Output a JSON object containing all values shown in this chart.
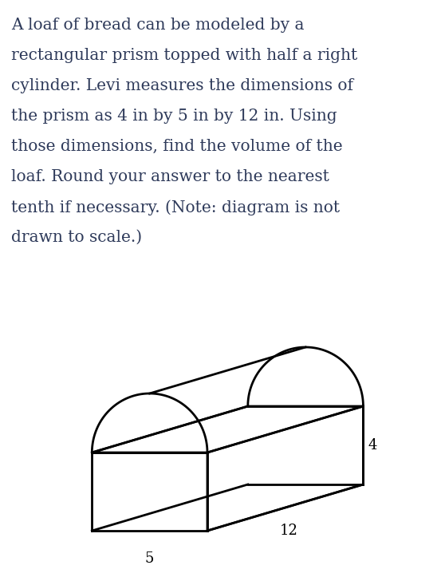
{
  "text_color": "#2e3a5a",
  "background_color": "#ffffff",
  "dim_4": "4",
  "dim_5": "5",
  "dim_12": "12",
  "label_fontsize": 13,
  "text_fontsize": 14.5,
  "lines": [
    "A loaf of bread can be modeled by a",
    "rectangular prism topped with half a right",
    "cylinder. Levi measures the dimensions of",
    "the prism as 4 in by 5 in by 12 in. Using",
    "those dimensions, find the volume of the",
    "loaf. Round your answer to the nearest",
    "tenth if necessary. (Note: diagram is not",
    "drawn to scale.)"
  ]
}
